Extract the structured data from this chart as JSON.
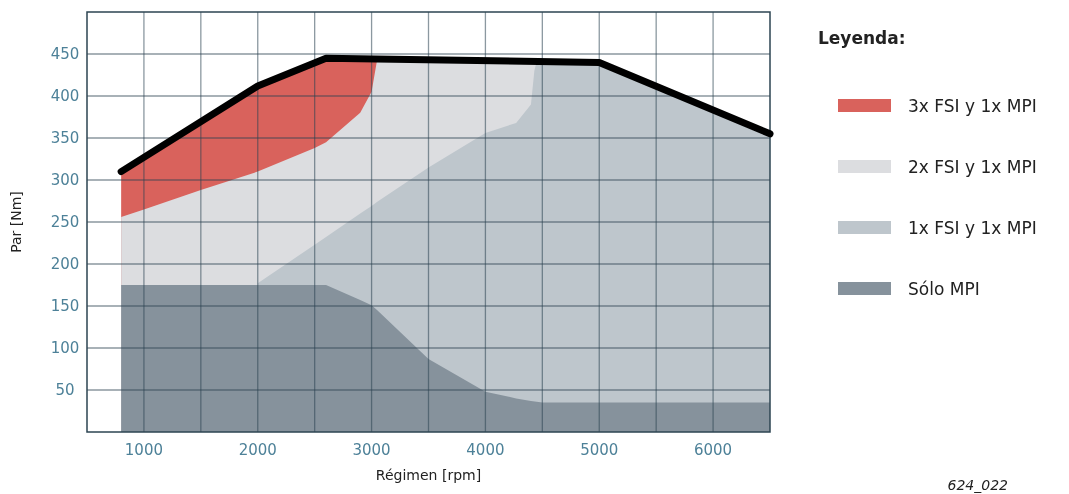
{
  "chart_data": {
    "type": "area",
    "xlabel": "Régimen [rpm]",
    "ylabel": "Par [Nm]",
    "legend_title": "Leyenda:",
    "legend": "right",
    "grid": true,
    "xlim": [
      500,
      6500
    ],
    "ylim": [
      0,
      500
    ],
    "xticks": [
      1000,
      {
        "value": 1500,
        "label": null
      },
      2000,
      {
        "value": 2500,
        "label": null
      },
      3000,
      {
        "value": 3500,
        "label": null
      },
      4000,
      {
        "value": 4500,
        "label": null
      },
      5000,
      {
        "value": 5500,
        "label": null
      },
      6000
    ],
    "yticks": [
      50,
      100,
      150,
      200,
      250,
      300,
      350,
      400,
      450
    ],
    "series": [
      {
        "name": "3x FSI y 1x MPI",
        "color": "#d9625c",
        "x": [
          800,
          1000,
          1500,
          2000,
          2500,
          2600,
          2900,
          3000,
          3050
        ],
        "values": [
          310,
          327,
          370,
          412,
          440,
          445,
          445,
          444,
          444
        ]
      },
      {
        "name": "2x FSI y 1x MPI",
        "color": "#dcdde0",
        "x": [
          800,
          1000,
          1500,
          2000,
          2500,
          2600,
          2900,
          3000,
          3050,
          3500,
          4000,
          4270,
          4400,
          4430,
          4450
        ],
        "values": [
          256,
          265,
          288,
          310,
          338,
          345,
          380,
          405,
          444,
          443,
          442,
          442,
          441,
          441,
          441
        ]
      },
      {
        "name": "1x FSI y 1x MPI",
        "color": "#bec6cc",
        "x": [
          2000,
          2500,
          2600,
          2900,
          3000,
          3050,
          3500,
          4000,
          4270,
          4400,
          4430,
          4450,
          4500,
          5000,
          5500,
          6000,
          6500
        ],
        "values": [
          177,
          223,
          232,
          260,
          269,
          274,
          315,
          356,
          368,
          390,
          430,
          441,
          441,
          440,
          412,
          383,
          355
        ]
      },
      {
        "name": "Sólo MPI",
        "color": "#86929c",
        "x": [
          800,
          1000,
          1500,
          2000,
          2500,
          2600,
          2900,
          3000,
          3050,
          3500,
          4000,
          4270,
          4400,
          4450,
          4500,
          5000,
          5500,
          6000,
          6500
        ],
        "values": [
          175,
          175,
          175,
          175,
          175,
          175,
          157,
          151,
          145,
          87,
          48,
          40,
          37,
          36,
          35,
          35,
          35,
          35,
          35
        ]
      },
      {
        "type": "line",
        "color": "#000000",
        "x": [
          800,
          2000,
          2600,
          5000,
          6500
        ],
        "values": [
          310,
          412,
          445,
          440,
          355
        ]
      }
    ],
    "annotations": [
      "624_022"
    ]
  }
}
